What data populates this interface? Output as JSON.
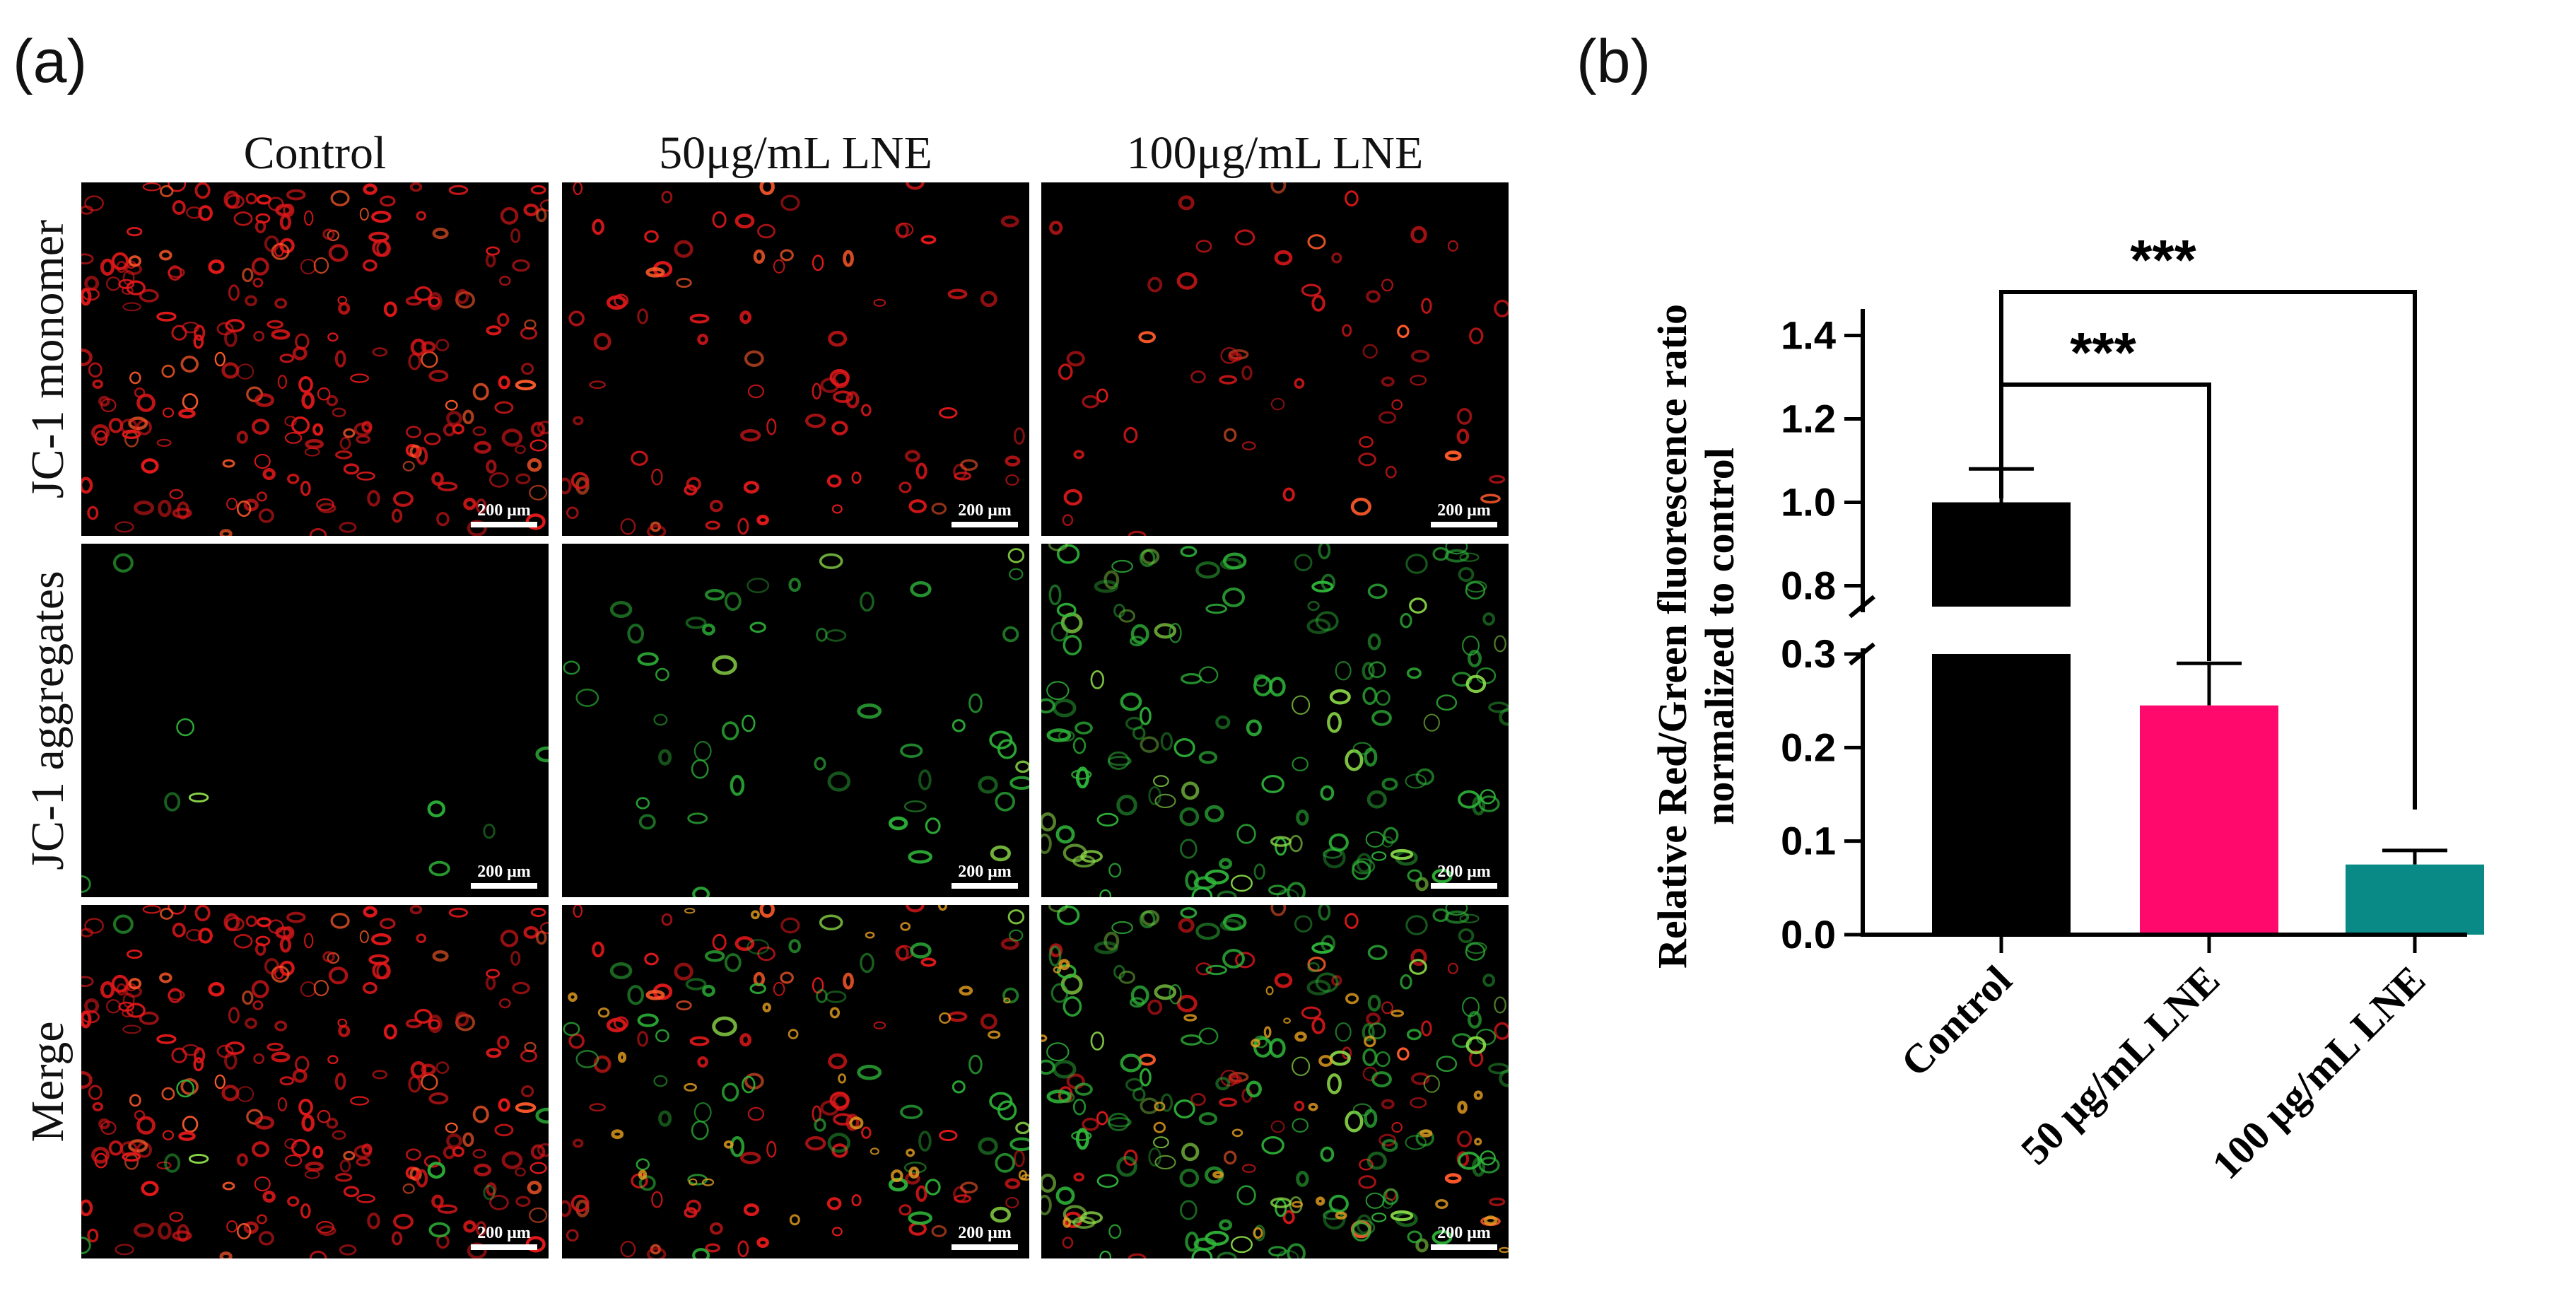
{
  "panel_a": {
    "letter": "(a)",
    "column_headers": [
      "Control",
      "50μg/mL LNE",
      "100μg/mL LNE"
    ],
    "row_headers": [
      "JC-1 monomer",
      "JC-1 aggregates",
      "Merge"
    ],
    "scale_bar_label": "200 μm",
    "images": [
      {
        "row": "JC-1 monomer",
        "col": "Control",
        "red_density": 1.0,
        "green_density": 0.0
      },
      {
        "row": "JC-1 monomer",
        "col": "50μg/mL LNE",
        "red_density": 0.35,
        "green_density": 0.0
      },
      {
        "row": "JC-1 monomer",
        "col": "100μg/mL LNE",
        "red_density": 0.25,
        "green_density": 0.0
      },
      {
        "row": "JC-1 aggregates",
        "col": "Control",
        "red_density": 0.0,
        "green_density": 0.05
      },
      {
        "row": "JC-1 aggregates",
        "col": "50μg/mL LNE",
        "red_density": 0.0,
        "green_density": 0.3
      },
      {
        "row": "JC-1 aggregates",
        "col": "100μg/mL LNE",
        "red_density": 0.0,
        "green_density": 0.9
      },
      {
        "row": "Merge",
        "col": "Control",
        "red_density": 1.0,
        "green_density": 0.05
      },
      {
        "row": "Merge",
        "col": "50μg/mL LNE",
        "red_density": 0.35,
        "green_density": 0.3
      },
      {
        "row": "Merge",
        "col": "100μg/mL LNE",
        "red_density": 0.25,
        "green_density": 0.9
      }
    ]
  },
  "panel_b": {
    "letter": "(b)"
  },
  "chart_data": {
    "type": "bar",
    "categories": [
      "Control",
      "50 μg/mL LNE",
      "100 μg/mL LNE"
    ],
    "values": [
      1.0,
      0.245,
      0.075
    ],
    "errors": [
      0.08,
      0.045,
      0.015
    ],
    "colors": [
      "#000000",
      "#ff0a6c",
      "#0a8a86"
    ],
    "xlabel": "",
    "ylabel": [
      "Relative Red/Green fluorescence ratio",
      "normalized to control"
    ],
    "y_axis_broken": true,
    "lower_segment": {
      "range": [
        0.0,
        0.3
      ],
      "ticks": [
        "0.0",
        "0.1",
        "0.2",
        "0.3"
      ]
    },
    "upper_segment": {
      "range": [
        0.75,
        1.45
      ],
      "ticks": [
        "0.8",
        "1.0",
        "1.2",
        "1.4"
      ]
    },
    "significance": [
      {
        "from": "Control",
        "to": "50 μg/mL LNE",
        "label": "***"
      },
      {
        "from": "Control",
        "to": "100 μg/mL LNE",
        "label": "***"
      }
    ],
    "grid": false,
    "legend": "none"
  }
}
